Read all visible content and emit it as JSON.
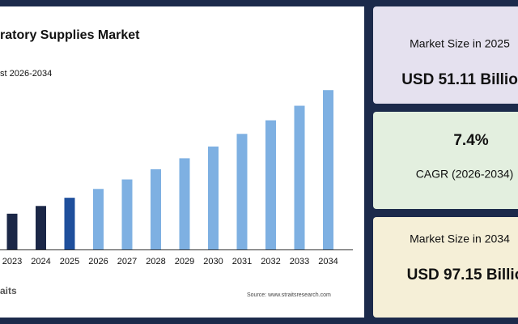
{
  "chart_data": {
    "type": "bar",
    "title": "ratory Supplies Market",
    "subtitle": "st 2026-2034",
    "categories": [
      "2023",
      "2024",
      "2025",
      "2026",
      "2027",
      "2028",
      "2029",
      "2030",
      "2031",
      "2032",
      "2033",
      "2034"
    ],
    "values": [
      44.3,
      47.6,
      51.11,
      54.89,
      58.95,
      63.31,
      68.0,
      73.03,
      78.43,
      84.23,
      90.46,
      97.15
    ],
    "colors": [
      "#1b2747",
      "#1b2747",
      "#1f4f9c",
      "#7eb0e2",
      "#7eb0e2",
      "#7eb0e2",
      "#7eb0e2",
      "#7eb0e2",
      "#7eb0e2",
      "#7eb0e2",
      "#7eb0e2",
      "#7eb0e2"
    ],
    "ylim": [
      29,
      100
    ]
  },
  "source": "Source: www.straitsresearch.com",
  "logo": "aits",
  "cards": [
    {
      "label": "Market Size in 2025",
      "value": "USD 51.11 Billio"
    },
    {
      "value": "7.4%",
      "label": "CAGR (2026-2034)"
    },
    {
      "label": "Market Size in 2034",
      "value": "USD 97.15 Billio"
    }
  ]
}
